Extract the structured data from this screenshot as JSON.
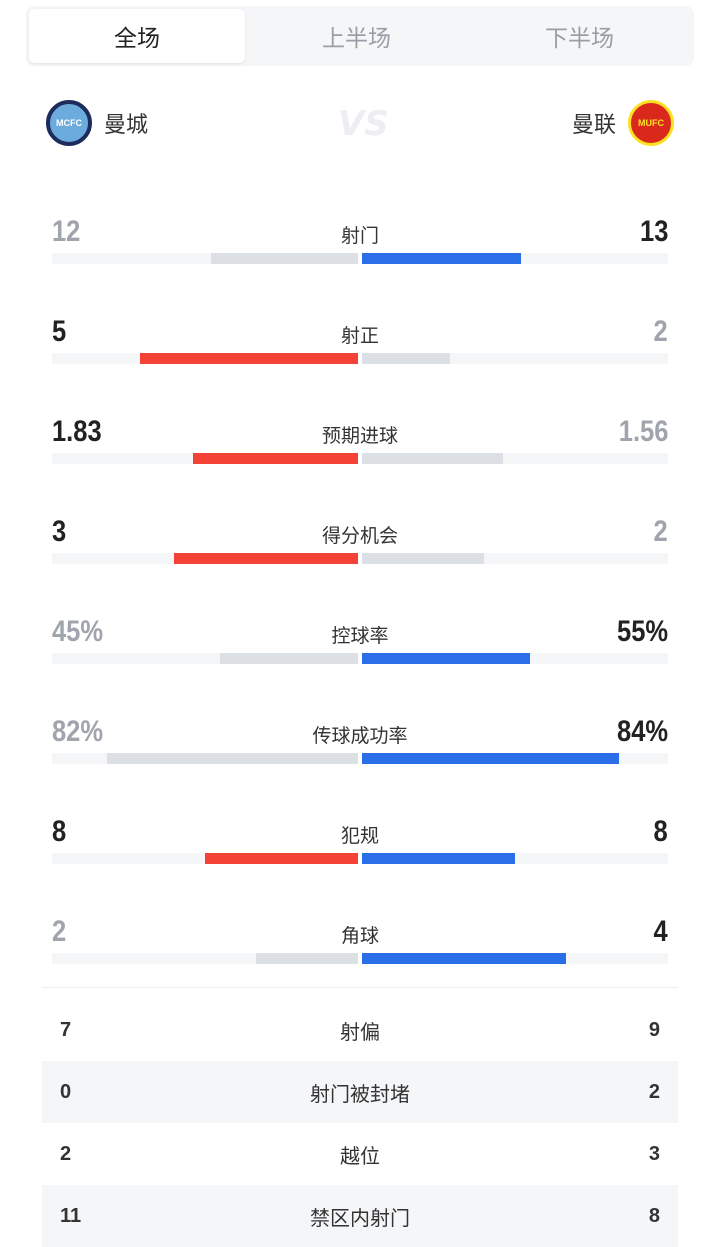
{
  "tabs": [
    {
      "label": "全场",
      "active": true
    },
    {
      "label": "上半场",
      "active": false
    },
    {
      "label": "下半场",
      "active": false
    }
  ],
  "teams": {
    "home": {
      "name": "曼城",
      "crest_text": "MCFC"
    },
    "away": {
      "name": "曼联",
      "crest_text": "MUFC"
    },
    "vs": "VS"
  },
  "colors": {
    "home": "#f44336",
    "away": "#2a6fe8",
    "loser": "#dcdfe4",
    "track": "#f5f6f8",
    "dark_text": "#222222",
    "muted_text": "#a0a4ad"
  },
  "bar_stats": [
    {
      "label": "射门",
      "home": "12",
      "away": "13",
      "home_share": 0.48,
      "away_share": 0.52
    },
    {
      "label": "射正",
      "home": "5",
      "away": "2",
      "home_share": 0.714,
      "away_share": 0.286
    },
    {
      "label": "预期进球",
      "home": "1.83",
      "away": "1.56",
      "home_share": 0.54,
      "away_share": 0.46
    },
    {
      "label": "得分机会",
      "home": "3",
      "away": "2",
      "home_share": 0.6,
      "away_share": 0.4
    },
    {
      "label": "控球率",
      "home": "45%",
      "away": "55%",
      "home_share": 0.45,
      "away_share": 0.55
    },
    {
      "label": "传球成功率",
      "home": "82%",
      "away": "84%",
      "home_share": 0.82,
      "away_share": 0.84
    },
    {
      "label": "犯规",
      "home": "8",
      "away": "8",
      "home_share": 0.5,
      "away_share": 0.5
    },
    {
      "label": "角球",
      "home": "2",
      "away": "4",
      "home_share": 0.333,
      "away_share": 0.667
    }
  ],
  "table_stats": [
    {
      "label": "射偏",
      "home": "7",
      "away": "9"
    },
    {
      "label": "射门被封堵",
      "home": "0",
      "away": "2"
    },
    {
      "label": "越位",
      "home": "2",
      "away": "3"
    },
    {
      "label": "禁区内射门",
      "home": "11",
      "away": "8"
    }
  ]
}
